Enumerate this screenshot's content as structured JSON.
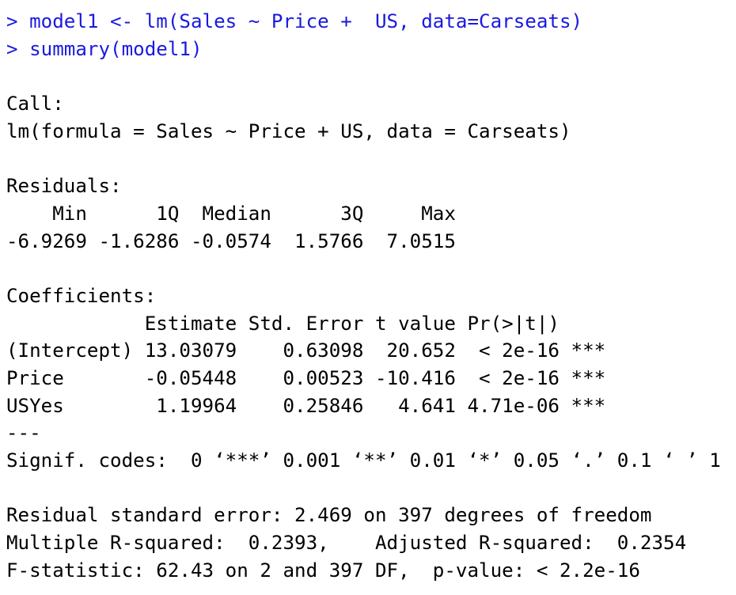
{
  "console": {
    "commands": [
      "> model1 <- lm(Sales ~ Price +  US, data=Carseats)",
      "> summary(model1)"
    ],
    "call_header": "Call:",
    "call_formula": "lm(formula = Sales ~ Price + US, data = Carseats)",
    "residuals_header": "Residuals:",
    "residuals_columns": "    Min      1Q  Median      3Q     Max ",
    "residuals_values": "-6.9269 -1.6286 -0.0574  1.5766  7.0515 ",
    "coefficients_header": "Coefficients:",
    "coefficients_columns": "            Estimate Std. Error t value Pr(>|t|)    ",
    "coefficient_rows": [
      "(Intercept) 13.03079    0.63098  20.652  < 2e-16 ***",
      "Price       -0.05448    0.00523 -10.416  < 2e-16 ***",
      "USYes        1.19964    0.25846   4.641 4.71e-06 ***"
    ],
    "separator": "---",
    "signif_codes": "Signif. codes:  0 ‘***’ 0.001 ‘**’ 0.01 ‘*’ 0.05 ‘.’ 0.1 ‘ ’ 1",
    "residual_se": "Residual standard error: 2.469 on 397 degrees of freedom",
    "r_squared": "Multiple R-squared:  0.2393,\tAdjusted R-squared:  0.2354 ",
    "f_statistic": "F-statistic: 62.43 on 2 and 397 DF,  p-value: < 2.2e-16"
  },
  "colors": {
    "command_text": "#1a1ae0",
    "output_text": "#000000",
    "background": "#ffffff"
  }
}
